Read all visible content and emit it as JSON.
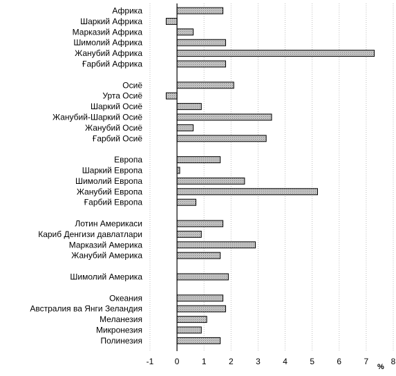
{
  "chart_data": {
    "type": "bar",
    "orientation": "horizontal",
    "categories": [
      "Африка",
      "Шаркий Африка",
      "Марказий Африка",
      "Шимолий Африка",
      "Жанубий Африка",
      "Ғарбий Африка",
      "",
      "Осиё",
      "Урта Осиё",
      "Шаркий Осиё",
      "Жанубий-Шаркий Осиё",
      "Жанубий Осиё",
      "Ғарбий Осиё",
      "",
      "Европа",
      "Шаркий Европа",
      "Шимолий Европа",
      "Жанубий Европа",
      "Ғарбий Европа",
      "",
      "Лотин Америкаси",
      "Кариб Денгизи давлатлари",
      "Марказий Америка",
      "Жанубий Америка",
      "",
      "Шимолий Америка",
      "",
      "Океания",
      "Австралия ва Янги Зеландия",
      "Меланезия",
      "Микронезия",
      "Полинезия"
    ],
    "values": [
      1.7,
      -0.4,
      0.6,
      1.8,
      7.3,
      1.8,
      null,
      2.1,
      -0.4,
      0.9,
      3.5,
      0.6,
      3.3,
      null,
      1.6,
      0.1,
      2.5,
      5.2,
      0.7,
      null,
      1.7,
      0.9,
      2.9,
      1.6,
      null,
      1.9,
      null,
      1.7,
      1.8,
      1.1,
      0.9,
      1.6
    ],
    "xlim": [
      -1,
      8
    ],
    "x_ticks": [
      "-1",
      "0",
      "1",
      "2",
      "3",
      "4",
      "5",
      "6",
      "7",
      "8"
    ],
    "xunit": "%",
    "bar_color": "#c8c8c8",
    "grid": true
  }
}
